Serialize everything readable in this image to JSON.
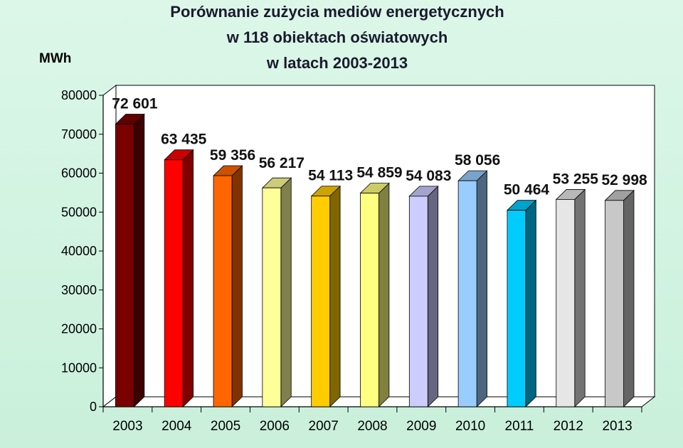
{
  "chart_data": {
    "type": "bar",
    "title": [
      "Porównanie zużycia mediów energetycznych",
      "w 118 obiektach oświatowych",
      "w latach 2003-2013"
    ],
    "ylabel": "MWh",
    "ylim": [
      0,
      80000
    ],
    "yticks": [
      "0",
      "10000",
      "20000",
      "30000",
      "40000",
      "50000",
      "60000",
      "70000",
      "80000"
    ],
    "categories": [
      "2003",
      "2004",
      "2005",
      "2006",
      "2007",
      "2008",
      "2009",
      "2010",
      "2011",
      "2012",
      "2013"
    ],
    "values": [
      72601,
      63435,
      59356,
      56217,
      54113,
      54859,
      54083,
      58056,
      50464,
      53255,
      52998
    ],
    "value_labels": [
      "72 601",
      "63 435",
      "59 356",
      "56 217",
      "54 113",
      "54 859",
      "54 083",
      "58 056",
      "50 464",
      "53 255",
      "52 998"
    ],
    "colors": [
      "#7a0000",
      "#ff0000",
      "#ff6600",
      "#ffff99",
      "#ffcc00",
      "#ffff80",
      "#ccccff",
      "#99ccff",
      "#00ccff",
      "#e6e6e6",
      "#c8c8c8"
    ],
    "grid": false,
    "legend": "none"
  }
}
